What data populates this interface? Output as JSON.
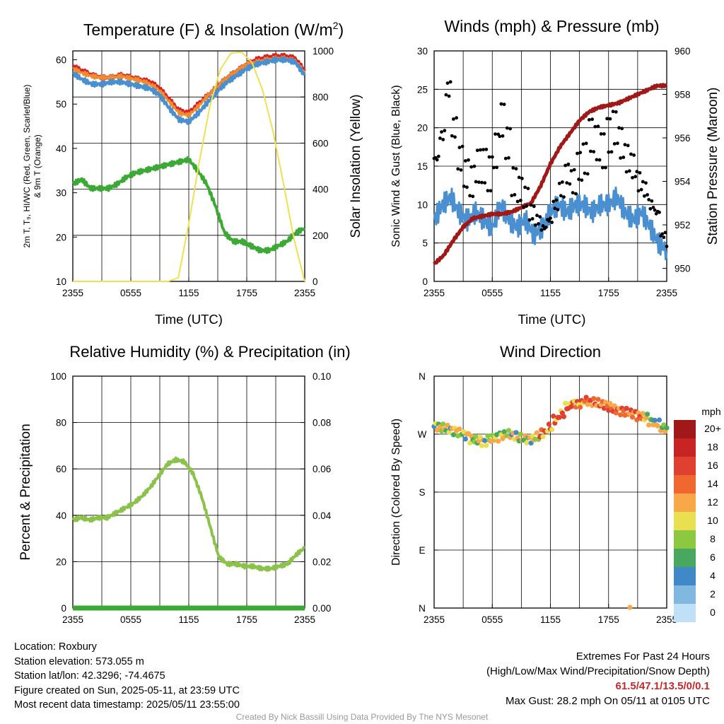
{
  "panels": {
    "temperature": {
      "title_main": "Temperature (F) & Insolation (W/m",
      "title_sup": "2",
      "title_end": ")",
      "ylabel_left_line1": "2m T, T₉, HI/WC (Red, Green, Scarlet/Blue)",
      "ylabel_left_line2": "& 9m T (Orange)",
      "ylabel_right": "Solar Insolation (Yellow)",
      "xlabel": "Time (UTC)"
    },
    "winds": {
      "title": "Winds (mph) & Pressure (mb)",
      "ylabel_left": "Sonic Wind & Gust (Blue, Black)",
      "ylabel_right": "Station Pressure (Maroon)",
      "xlabel": "Time (UTC)"
    },
    "humidity": {
      "title": "Relative Humidity (%) & Precipitation (in)",
      "ylabel_left": "Percent & Precipitation"
    },
    "direction": {
      "title": "Wind Direction",
      "ylabel_left": "Direction (Colored By Speed)",
      "colorbar_title": "mph"
    }
  },
  "footer": {
    "location": "Location: Roxbury",
    "elevation": "Station elevation: 573.055 m",
    "latlon": "Station lat/lon: 42.3296; -74.4675",
    "created": "Figure created on Sun, 2025-05-11, at 23:59 UTC",
    "recent": "Most recent data timestamp: 2025/05/11 23:55:00",
    "extremes_title": "Extremes For Past 24 Hours",
    "extremes_sub": "(High/Low/Max Wind/Precipitation/Snow Depth)",
    "extremes_values": "61.5/47.1/13.5/0/0.1",
    "max_gust": "Max Gust: 28.2 mph On 05/11 at 0105 UTC",
    "credit": "Created By Nick Bassill Using Data Provided By The NYS Mesonet"
  },
  "chart_data": [
    {
      "type": "line",
      "id": "temperature",
      "x_ticks": [
        "2355",
        "0555",
        "1155",
        "1755",
        "2355"
      ],
      "ylim_left": [
        10,
        62
      ],
      "yticks_left": [
        10,
        20,
        30,
        40,
        50,
        60
      ],
      "ylim_right": [
        0,
        1000
      ],
      "yticks_right": [
        0,
        200,
        400,
        600,
        800,
        1000
      ],
      "grid": true,
      "series": [
        {
          "color": "#d92323",
          "axis": "left",
          "values": [
            58.5,
            57.5,
            56.5,
            56,
            56,
            56.5,
            56,
            55.5,
            55,
            53.5,
            51,
            48.5,
            48,
            50,
            52,
            54,
            56,
            57.5,
            59,
            60,
            60.5,
            60.8,
            60.8,
            60.3,
            57.5
          ]
        },
        {
          "color": "#f08c30",
          "axis": "left",
          "values": [
            58,
            57,
            56.3,
            56,
            56,
            56.3,
            55.8,
            55.3,
            54.5,
            53,
            50.5,
            48,
            47.5,
            49.5,
            52,
            54,
            56,
            57.5,
            59,
            59.5,
            60,
            60.3,
            60.3,
            59.8,
            57
          ]
        },
        {
          "color": "#4a90d0",
          "axis": "left",
          "values": [
            57,
            55.5,
            54.5,
            54.5,
            55,
            55,
            54.5,
            54,
            53.5,
            52,
            49,
            46.5,
            46,
            48,
            50.5,
            53,
            55,
            56.5,
            58,
            59,
            59.5,
            60,
            60,
            59.5,
            56.5
          ]
        },
        {
          "color": "#3aaa35",
          "axis": "left",
          "values": [
            32,
            33,
            31,
            31,
            31,
            32,
            33.5,
            34.5,
            35,
            35.5,
            36,
            36.5,
            37,
            37.5,
            35,
            32,
            27,
            21,
            19,
            19,
            18,
            17,
            17,
            18,
            19,
            21,
            22
          ]
        },
        {
          "color": "#f0e050",
          "axis": "right",
          "values": [
            0,
            0,
            0,
            0,
            0,
            0,
            0,
            0,
            0,
            0,
            15,
            250,
            520,
            760,
            920,
            990,
            995,
            950,
            830,
            650,
            420,
            180,
            0
          ]
        }
      ]
    },
    {
      "type": "line",
      "id": "winds",
      "x_ticks": [
        "2355",
        "0555",
        "1155",
        "1755",
        "2355"
      ],
      "ylim_left": [
        0,
        30
      ],
      "yticks_left": [
        0,
        5,
        10,
        15,
        20,
        25,
        30
      ],
      "ylim_right": [
        949.4,
        960
      ],
      "yticks_right": [
        950,
        952,
        954,
        956,
        958,
        960
      ],
      "grid": true,
      "series": [
        {
          "color": "#4a90d0",
          "axis": "left",
          "values": [
            8,
            10,
            11,
            9,
            8,
            9,
            8,
            7,
            10,
            8,
            7,
            8,
            6,
            7,
            9,
            10,
            9,
            10,
            10,
            9,
            10,
            10,
            11,
            9,
            8,
            9,
            7,
            5,
            4
          ]
        },
        {
          "color": "#a01818",
          "axis": "right",
          "values": [
            950.2,
            950.6,
            951.3,
            951.9,
            952.3,
            952.4,
            952.5,
            952.5,
            952.6,
            952.8,
            953.0,
            953.8,
            954.8,
            955.6,
            956.2,
            956.8,
            957.2,
            957.4,
            957.5,
            957.6,
            957.8,
            958.0,
            958.2,
            958.4,
            958.4
          ]
        },
        {
          "color": "#000000",
          "axis": "left",
          "type": "scatter",
          "values": [
            16,
            19,
            25,
            20,
            16,
            14,
            13,
            15,
            15,
            14,
            17,
            21,
            18,
            13,
            12,
            11,
            9,
            8,
            7,
            8,
            10,
            12,
            14,
            13,
            15,
            16,
            19,
            18,
            17,
            19,
            20,
            18,
            16,
            15,
            13,
            12,
            10,
            9,
            6,
            5
          ]
        }
      ]
    },
    {
      "type": "line",
      "id": "humidity",
      "x_ticks": [
        "2355",
        "0555",
        "1155",
        "1755",
        "2355"
      ],
      "ylim_left": [
        0,
        100
      ],
      "yticks_left": [
        0,
        20,
        40,
        60,
        80,
        100
      ],
      "ylim_right": [
        0,
        0.1
      ],
      "yticks_right": [
        "0.00",
        "0.02",
        "0.04",
        "0.06",
        "0.08",
        "0.10"
      ],
      "grid": true,
      "series": [
        {
          "color": "#8bc34a",
          "axis": "left",
          "values": [
            38,
            39,
            38,
            39,
            39,
            41,
            43,
            45,
            48,
            52,
            57,
            62,
            64,
            63,
            58,
            48,
            35,
            22,
            19,
            19,
            18,
            18,
            17,
            17,
            18,
            19,
            23,
            26
          ]
        },
        {
          "color": "#3aaa35",
          "axis": "right",
          "values": [
            0,
            0,
            0,
            0,
            0,
            0,
            0,
            0,
            0,
            0,
            0,
            0,
            0,
            0,
            0,
            0,
            0,
            0,
            0,
            0,
            0,
            0,
            0,
            0,
            0
          ]
        }
      ]
    },
    {
      "type": "scatter",
      "id": "direction",
      "x_ticks": [
        "2355",
        "0555",
        "1155",
        "1755",
        "2355"
      ],
      "yticks_left": [
        "N",
        "W",
        "S",
        "E",
        "N"
      ],
      "ylim_degrees": [
        0,
        360
      ],
      "grid": true,
      "colorbar": {
        "labels": [
          "20+",
          "18",
          "16",
          "14",
          "12",
          "10",
          "8",
          "6",
          "4",
          "2",
          "0"
        ],
        "colors": [
          "#a01818",
          "#c82424",
          "#e04030",
          "#f06830",
          "#f8a848",
          "#e8e050",
          "#8cc840",
          "#48a860",
          "#4088c8",
          "#80b8e0",
          "#c0e0f8"
        ]
      },
      "points_deg": [
        282,
        280,
        278,
        275,
        272,
        268,
        262,
        260,
        258,
        262,
        265,
        268,
        270,
        268,
        264,
        262,
        262,
        266,
        272,
        280,
        292,
        302,
        312,
        318,
        316,
        322,
        320,
        318,
        316,
        312,
        308,
        306,
        304,
        302,
        298,
        296,
        290,
        286,
        280,
        276
      ]
    }
  ]
}
